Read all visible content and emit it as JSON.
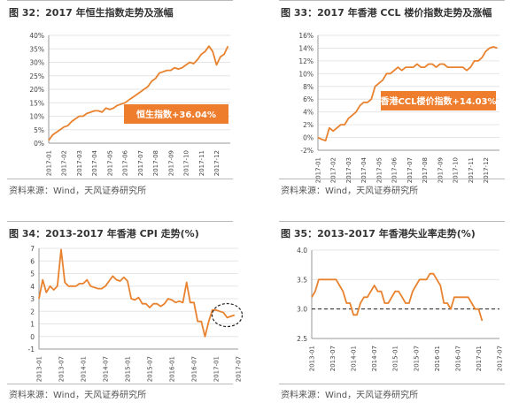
{
  "panels": [
    {
      "title": "图 32：2017 年恒生指数走势及涨幅",
      "source": "资料来源：Wind，天风证券研究所"
    },
    {
      "title": "图 33：2017 年香港 CCL 楼价指数走势及涨幅",
      "source": "资料来源：Wind，天风证券研究所"
    },
    {
      "title": "图 34：2013-2017 年香港 CPI 走势(%)",
      "source": "资料来源：Wind，天风证券研究所"
    },
    {
      "title": "图 35：2013-2017 年香港失业率走势(%)",
      "source": "资料来源：Wind，天风证券研究所"
    }
  ],
  "chart_data": [
    {
      "type": "line",
      "ylim": [
        0,
        40
      ],
      "y_ticks": [
        "0%",
        "5%",
        "10%",
        "15%",
        "20%",
        "25%",
        "30%",
        "35%",
        "40%"
      ],
      "x_ticks": [
        "2017-01",
        "2017-02",
        "2017-03",
        "2017-04",
        "2017-05",
        "2017-06",
        "2017-07",
        "2017-08",
        "2017-09",
        "2017-10",
        "2017-11",
        "2017-12"
      ],
      "x": [
        0,
        0.25,
        0.5,
        0.75,
        1,
        1.25,
        1.5,
        1.75,
        2,
        2.25,
        2.5,
        2.75,
        3,
        3.25,
        3.5,
        3.75,
        4,
        4.25,
        4.5,
        4.75,
        5,
        5.25,
        5.5,
        5.75,
        6,
        6.25,
        6.5,
        6.75,
        7,
        7.25,
        7.5,
        7.75,
        8,
        8.25,
        8.5,
        8.75,
        9,
        9.25,
        9.5,
        9.75,
        10,
        10.25,
        10.5,
        10.75,
        11,
        11.25,
        11.5,
        11.75
      ],
      "values": [
        1,
        3,
        4,
        5,
        6,
        6.5,
        8,
        9,
        10,
        10,
        11,
        11.5,
        12,
        12,
        11.5,
        13,
        12.5,
        13,
        14,
        14.5,
        15,
        16,
        17,
        18,
        19,
        20,
        21,
        23,
        24,
        26,
        26.5,
        27,
        27,
        28,
        27.5,
        28,
        29,
        30,
        29.5,
        31,
        33,
        34,
        36,
        34,
        29,
        32,
        33,
        36
      ],
      "annotation": "恒生指数+36.04%",
      "color": "#e8822e"
    },
    {
      "type": "line",
      "ylim": [
        -2,
        16
      ],
      "y_ticks": [
        "-2%",
        "0%",
        "2%",
        "4%",
        "6%",
        "8%",
        "10%",
        "12%",
        "14%",
        "16%"
      ],
      "x_ticks": [
        "2017-01",
        "2017-02",
        "2017-03",
        "2017-04",
        "2017-05",
        "2017-06",
        "2017-07",
        "2017-08",
        "2017-09",
        "2017-10",
        "2017-11",
        "2017-12"
      ],
      "x": [
        0,
        0.25,
        0.5,
        0.75,
        1,
        1.25,
        1.5,
        1.75,
        2,
        2.25,
        2.5,
        2.75,
        3,
        3.25,
        3.5,
        3.75,
        4,
        4.25,
        4.5,
        4.75,
        5,
        5.25,
        5.5,
        5.75,
        6,
        6.25,
        6.5,
        6.75,
        7,
        7.25,
        7.5,
        7.75,
        8,
        8.25,
        8.5,
        8.75,
        9,
        9.25,
        9.5,
        9.75,
        10,
        10.25,
        10.5,
        10.75,
        11,
        11.25,
        11.5,
        11.75
      ],
      "values": [
        0,
        -0.3,
        -0.5,
        1.5,
        1,
        1.5,
        2,
        2,
        3,
        3.5,
        4,
        5,
        5.5,
        5.5,
        6,
        8,
        8.5,
        9,
        10,
        10,
        10.5,
        11,
        10.5,
        11,
        11,
        11,
        11.5,
        11,
        11,
        11.5,
        11.5,
        11,
        11.5,
        11.5,
        11,
        11,
        11,
        11,
        11,
        10.5,
        11,
        12,
        12,
        12.5,
        13.5,
        14,
        14.2,
        14
      ],
      "annotation": "香港CCL楼价指数+14.03%",
      "color": "#e8822e"
    },
    {
      "type": "line",
      "ylim": [
        -1,
        7
      ],
      "y_ticks": [
        "-1",
        "0",
        "1",
        "2",
        "3",
        "4",
        "5",
        "6",
        "7"
      ],
      "x_ticks": [
        "2013-01",
        "2013-07",
        "2014-01",
        "2014-07",
        "2015-01",
        "2015-07",
        "2016-01",
        "2016-07",
        "2017-01",
        "2017-07"
      ],
      "x": [
        0,
        1,
        2,
        3,
        4,
        5,
        6,
        7,
        8,
        9,
        10,
        11,
        12,
        13,
        14,
        15,
        16,
        17,
        18,
        19,
        20,
        21,
        22,
        23,
        24,
        25,
        26,
        27,
        28,
        29,
        30,
        31,
        32,
        33,
        34,
        35,
        36,
        37,
        38,
        39,
        40,
        41,
        42,
        43,
        44,
        45,
        46,
        47,
        48,
        49,
        50,
        51,
        52,
        53
      ],
      "values": [
        3,
        4.5,
        3.5,
        4,
        3.7,
        4,
        6.9,
        4.3,
        4,
        4,
        4,
        4.2,
        4.2,
        4.5,
        4,
        3.9,
        3.8,
        3.8,
        4,
        4.4,
        4.8,
        4.5,
        4.4,
        4.7,
        4.4,
        3,
        2.9,
        3.1,
        2.6,
        2.6,
        2.3,
        2.6,
        2.6,
        2.4,
        2.6,
        3,
        2.9,
        2.7,
        2.8,
        2.7,
        4.3,
        2.7,
        2.7,
        1.2,
        1.2,
        0,
        1.2,
        2.1,
        2.1,
        2,
        1.9,
        1.5,
        1.6,
        1.7
      ],
      "circle_note": "circle around 2017 end section",
      "color": "#e8822e"
    },
    {
      "type": "line",
      "ylim": [
        2.5,
        4.0
      ],
      "y_ticks": [
        "2.5",
        "3.0",
        "3.5",
        "4.0"
      ],
      "reference_line": 3.0,
      "x_ticks": [
        "2013-01",
        "2013-07",
        "2014-01",
        "2014-07",
        "2015-01",
        "2015-07",
        "2016-01",
        "2016-07",
        "2017-01",
        "2017-07"
      ],
      "x": [
        0,
        1,
        2,
        3,
        4,
        5,
        6,
        7,
        8,
        9,
        10,
        11,
        12,
        13,
        14,
        15,
        16,
        17,
        18,
        19,
        20,
        21,
        22,
        23,
        24,
        25,
        26,
        27,
        28,
        29,
        30,
        31,
        32,
        33,
        34,
        35,
        36,
        37,
        38,
        39,
        40,
        41,
        42,
        43,
        44,
        45,
        46,
        47,
        48,
        49,
        50,
        51,
        52,
        53
      ],
      "values": [
        3.2,
        3.3,
        3.5,
        3.5,
        3.5,
        3.5,
        3.5,
        3.5,
        3.4,
        3.3,
        3.1,
        3.1,
        2.9,
        2.9,
        3.1,
        3.2,
        3.2,
        3.3,
        3.4,
        3.3,
        3.3,
        3.1,
        3.1,
        3.2,
        3.3,
        3.3,
        3.2,
        3.1,
        3.1,
        3.3,
        3.4,
        3.5,
        3.5,
        3.5,
        3.6,
        3.6,
        3.5,
        3.4,
        3.1,
        3.1,
        3.0,
        3.2,
        3.2,
        3.2,
        3.2,
        3.2,
        3.1,
        3.0,
        3.0,
        2.8,
        null,
        null,
        null,
        null
      ],
      "color": "#e8822e"
    }
  ]
}
